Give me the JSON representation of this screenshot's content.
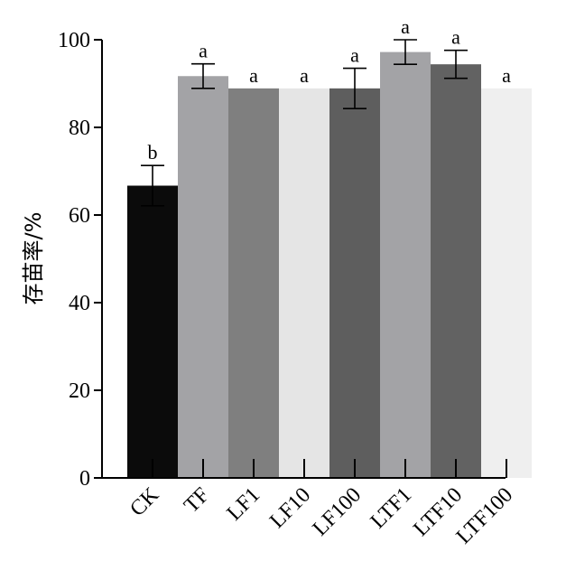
{
  "chart_data": {
    "type": "bar",
    "categories": [
      "CK",
      "TF",
      "LF1",
      "LF10",
      "LF100",
      "LTF1",
      "LTF10",
      "LTF100"
    ],
    "values": [
      66.7,
      91.7,
      88.9,
      88.9,
      88.9,
      97.2,
      94.4,
      88.9
    ],
    "errors": [
      4.6,
      2.8,
      0,
      0,
      4.6,
      2.8,
      3.2,
      0
    ],
    "significance": [
      "b",
      "a",
      "a",
      "a",
      "a",
      "a",
      "a",
      "a"
    ],
    "bar_colors": [
      "#0b0b0b",
      "#a3a3a6",
      "#7f7f7f",
      "#e5e5e5",
      "#5e5e5e",
      "#a3a3a6",
      "#626262",
      "#efefef"
    ],
    "ylabel": "存苗率/%",
    "xlabel": "",
    "ylim": [
      0,
      100
    ],
    "yticks": [
      "0",
      "20",
      "40",
      "60",
      "80",
      "100"
    ],
    "grid": false
  }
}
